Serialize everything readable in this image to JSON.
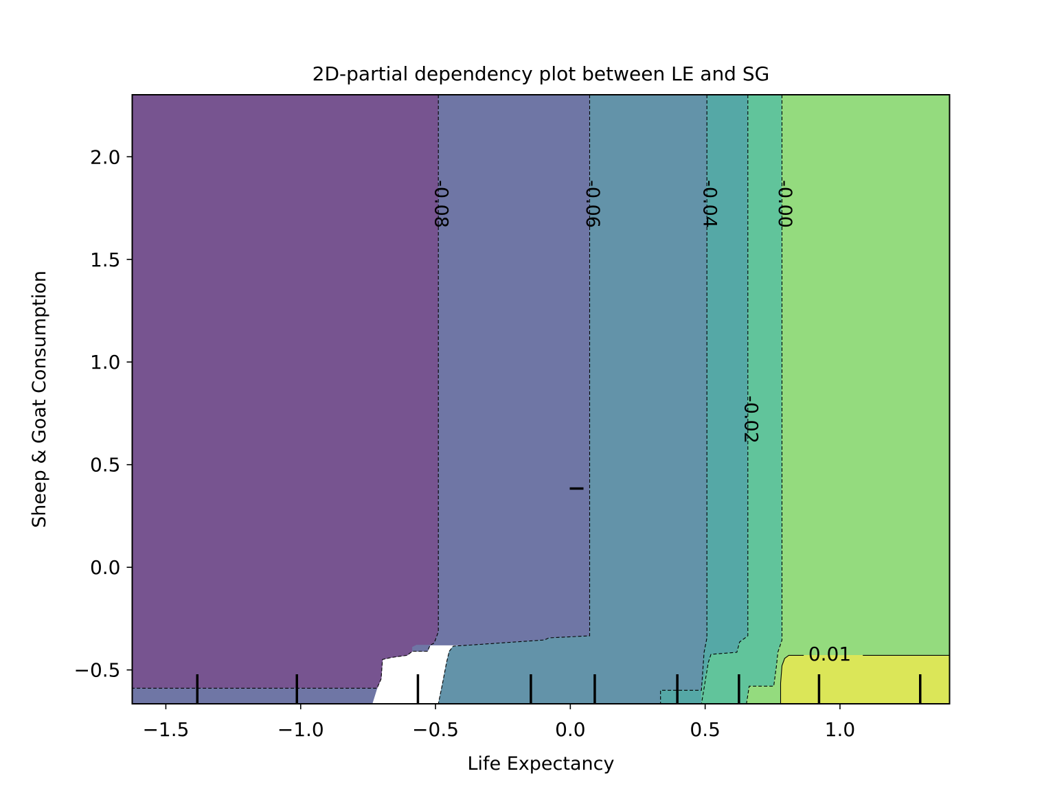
{
  "chart_data": {
    "type": "contour",
    "title": "2D-partial dependency plot between LE and SG",
    "xlabel": "Life Expectancy",
    "ylabel": "Sheep & Goat Consumption",
    "xlim": [
      -1.6247,
      1.4064
    ],
    "ylim": [
      -0.665,
      2.302
    ],
    "xticks": [
      {
        "value": -1.5,
        "label": "−1.5"
      },
      {
        "value": -1.0,
        "label": "−1.0"
      },
      {
        "value": -0.5,
        "label": "−0.5"
      },
      {
        "value": 0.0,
        "label": "0.0"
      },
      {
        "value": 0.5,
        "label": "0.5"
      },
      {
        "value": 1.0,
        "label": "1.0"
      }
    ],
    "yticks": [
      {
        "value": -0.5,
        "label": "−0.5"
      },
      {
        "value": 0.0,
        "label": "0.0"
      },
      {
        "value": 0.5,
        "label": "0.5"
      },
      {
        "value": 1.0,
        "label": "1.0"
      },
      {
        "value": 1.5,
        "label": "1.5"
      },
      {
        "value": 2.0,
        "label": "2.0"
      }
    ],
    "grid": false,
    "legend": "none",
    "colormap": "viridis",
    "alpha": 0.75,
    "regions": [
      {
        "band": "below -0.08",
        "color": "#775490",
        "boundary": [
          [
            -1.6247,
            2.302
          ],
          [
            -0.4895,
            2.302
          ],
          [
            -0.4895,
            -0.314
          ],
          [
            -0.5046,
            -0.369
          ],
          [
            -0.5198,
            -0.379
          ],
          [
            -0.5298,
            -0.409
          ],
          [
            -0.5854,
            -0.409
          ],
          [
            -0.6057,
            -0.429
          ],
          [
            -0.6612,
            -0.439
          ],
          [
            -0.6966,
            -0.449
          ],
          [
            -0.7017,
            -0.544
          ],
          [
            -0.7168,
            -0.589
          ],
          [
            -1.6247,
            -0.589
          ]
        ]
      },
      {
        "band": "-0.08 to -0.06",
        "color": "#6f76a5",
        "boundary": [
          [
            -0.4895,
            2.302
          ],
          [
            0.0716,
            2.302
          ],
          [
            0.0716,
            -0.334
          ],
          [
            -0.0799,
            -0.344
          ],
          [
            -0.0951,
            -0.354
          ],
          [
            -0.3729,
            -0.379
          ],
          [
            -0.5703,
            -0.379
          ],
          [
            -0.5855,
            -0.389
          ],
          [
            -0.5854,
            -0.409
          ],
          [
            -0.5298,
            -0.409
          ],
          [
            -0.5198,
            -0.379
          ],
          [
            -0.5046,
            -0.369
          ],
          [
            -0.4895,
            -0.314
          ]
        ]
      },
      {
        "band": "-0.08 to -0.06",
        "color": "#6f76a5",
        "boundary": [
          [
            -1.6247,
            -0.589
          ],
          [
            -0.7168,
            -0.589
          ],
          [
            -0.7349,
            -0.665
          ],
          [
            -1.6247,
            -0.665
          ]
        ]
      },
      {
        "band": "-0.06 to -0.04",
        "color": "#6393a9",
        "boundary": [
          [
            0.0716,
            2.302
          ],
          [
            0.5064,
            2.302
          ],
          [
            0.5064,
            -0.344
          ],
          [
            0.4961,
            -0.414
          ],
          [
            0.4861,
            -0.599
          ],
          [
            0.3345,
            -0.599
          ],
          [
            0.3345,
            -0.665
          ],
          [
            -0.4895,
            -0.665
          ],
          [
            -0.4743,
            -0.569
          ],
          [
            -0.4591,
            -0.464
          ],
          [
            -0.449,
            -0.409
          ],
          [
            -0.4338,
            -0.384
          ],
          [
            -0.3729,
            -0.379
          ],
          [
            -0.0951,
            -0.354
          ],
          [
            -0.0799,
            -0.344
          ],
          [
            0.0716,
            -0.334
          ]
        ]
      },
      {
        "band": "-0.04 to -0.02",
        "color": "#55a8a6",
        "boundary": [
          [
            0.5064,
            2.302
          ],
          [
            0.6584,
            2.302
          ],
          [
            0.6584,
            -0.334
          ],
          [
            0.6277,
            -0.364
          ],
          [
            0.6176,
            -0.414
          ],
          [
            0.5215,
            -0.424
          ],
          [
            0.5115,
            -0.464
          ],
          [
            0.4863,
            -0.599
          ],
          [
            0.4861,
            -0.599
          ],
          [
            0.4961,
            -0.414
          ],
          [
            0.5064,
            -0.344
          ]
        ]
      },
      {
        "band": "-0.04 to -0.02",
        "color": "#55a8a6",
        "boundary": [
          [
            0.3345,
            -0.599
          ],
          [
            0.4861,
            -0.599
          ],
          [
            0.4863,
            -0.665
          ],
          [
            0.3345,
            -0.665
          ]
        ]
      },
      {
        "band": "-0.02 to 0.00",
        "color": "#61c49b",
        "boundary": [
          [
            0.6584,
            2.302
          ],
          [
            0.7848,
            2.302
          ],
          [
            0.7848,
            -0.354
          ],
          [
            0.7695,
            -0.414
          ],
          [
            0.7645,
            -0.479
          ],
          [
            0.7544,
            -0.579
          ],
          [
            0.6633,
            -0.579
          ],
          [
            0.6533,
            -0.665
          ],
          [
            0.4863,
            -0.665
          ],
          [
            0.4863,
            -0.599
          ],
          [
            0.5115,
            -0.464
          ],
          [
            0.5215,
            -0.424
          ],
          [
            0.6176,
            -0.414
          ],
          [
            0.6277,
            -0.364
          ],
          [
            0.6584,
            -0.334
          ]
        ]
      },
      {
        "band": "0.00 to 0.01",
        "color": "#94db7e",
        "boundary": [
          [
            0.7848,
            2.302
          ],
          [
            1.4064,
            2.302
          ],
          [
            1.4064,
            -0.429
          ],
          [
            0.81,
            -0.429
          ],
          [
            0.7949,
            -0.444
          ],
          [
            0.7848,
            -0.479
          ],
          [
            0.7797,
            -0.564
          ],
          [
            0.7797,
            -0.665
          ],
          [
            0.6533,
            -0.665
          ],
          [
            0.6633,
            -0.579
          ],
          [
            0.7544,
            -0.579
          ],
          [
            0.7645,
            -0.479
          ],
          [
            0.7695,
            -0.414
          ],
          [
            0.7848,
            -0.354
          ]
        ]
      },
      {
        "band": "above 0.01",
        "color": "#dbe658",
        "boundary": [
          [
            0.81,
            -0.429
          ],
          [
            1.4064,
            -0.429
          ],
          [
            1.4064,
            -0.665
          ],
          [
            0.7797,
            -0.665
          ],
          [
            0.7797,
            -0.564
          ],
          [
            0.7848,
            -0.479
          ],
          [
            0.7949,
            -0.444
          ]
        ]
      }
    ],
    "contour_lines": [
      {
        "level": "-0.08",
        "label": "-0.08",
        "style": "dashed",
        "label_at": [
          -0.4895,
          1.77
        ],
        "points": [
          [
            -0.4895,
            2.302
          ],
          [
            -0.4895,
            -0.314
          ],
          [
            -0.5046,
            -0.369
          ],
          [
            -0.5198,
            -0.379
          ],
          [
            -0.5298,
            -0.409
          ],
          [
            -0.5854,
            -0.409
          ],
          [
            -0.6057,
            -0.429
          ],
          [
            -0.6612,
            -0.439
          ],
          [
            -0.6966,
            -0.449
          ],
          [
            -0.7017,
            -0.544
          ],
          [
            -0.7168,
            -0.589
          ],
          [
            -1.6247,
            -0.589
          ]
        ]
      },
      {
        "level": "-0.06",
        "label": "-0.06",
        "style": "dashed",
        "label_at": [
          0.0716,
          1.77
        ],
        "points": [
          [
            0.0716,
            2.302
          ],
          [
            0.0716,
            -0.334
          ],
          [
            -0.0799,
            -0.344
          ],
          [
            -0.0951,
            -0.354
          ],
          [
            -0.3729,
            -0.379
          ],
          [
            -0.4338,
            -0.384
          ],
          [
            -0.449,
            -0.409
          ],
          [
            -0.4591,
            -0.464
          ],
          [
            -0.4743,
            -0.569
          ],
          [
            -0.4895,
            -0.665
          ]
        ]
      },
      {
        "level": "-0.04",
        "label": "-0.04",
        "style": "dashed",
        "label_at": [
          0.5064,
          1.77
        ],
        "points": [
          [
            0.5064,
            2.302
          ],
          [
            0.5064,
            -0.344
          ],
          [
            0.4961,
            -0.414
          ],
          [
            0.4861,
            -0.599
          ],
          [
            0.3345,
            -0.599
          ],
          [
            0.3345,
            -0.665
          ]
        ]
      },
      {
        "level": "-0.02",
        "label": "-0.02",
        "style": "dashed",
        "label_at": [
          0.6584,
          0.72
        ],
        "points": [
          [
            0.6584,
            2.302
          ],
          [
            0.6584,
            -0.334
          ],
          [
            0.6277,
            -0.364
          ],
          [
            0.6176,
            -0.414
          ],
          [
            0.5215,
            -0.424
          ],
          [
            0.5115,
            -0.464
          ],
          [
            0.4863,
            -0.665
          ]
        ]
      },
      {
        "level": "-0.00",
        "label": "-0.00",
        "style": "dashed",
        "label_at": [
          0.7848,
          1.77
        ],
        "points": [
          [
            0.7848,
            2.302
          ],
          [
            0.7848,
            -0.354
          ],
          [
            0.7695,
            -0.414
          ],
          [
            0.7645,
            -0.479
          ],
          [
            0.7544,
            -0.579
          ],
          [
            0.6633,
            -0.579
          ],
          [
            0.6533,
            -0.665
          ]
        ]
      },
      {
        "level": "0.01",
        "label": "0.01",
        "style": "solid",
        "label_at": [
          0.9619,
          -0.424
        ],
        "gap": [
          0.8656,
          1.0847
        ],
        "points": [
          [
            1.4064,
            -0.429
          ],
          [
            0.81,
            -0.429
          ],
          [
            0.7949,
            -0.444
          ],
          [
            0.7848,
            -0.479
          ],
          [
            0.7797,
            -0.564
          ],
          [
            0.7797,
            -0.665
          ]
        ]
      }
    ],
    "x_deciles": [
      -1.3833,
      -1.014,
      -0.5652,
      -0.1463,
      0.0906,
      0.3968,
      0.6254,
      0.9223,
      1.2975
    ],
    "y_deciles": [
      0.3835
    ]
  }
}
